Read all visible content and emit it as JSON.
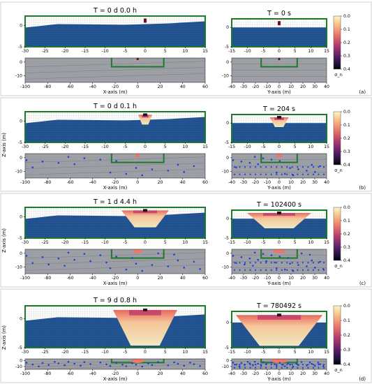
{
  "figure": {
    "axis_label_x": "X-axis (m)",
    "axis_label_y": "Y-axis (m)",
    "axis_label_z": "Z-axis (m)",
    "colorbar_label": "σ_n",
    "colorbar_ticks": [
      "0.0",
      "0.1",
      "0.2",
      "0.3",
      "0.4"
    ],
    "zoom_x_ticks": [
      "-30",
      "-25",
      "-20",
      "-15",
      "-10",
      "-5",
      "0",
      "5",
      "10",
      "15"
    ],
    "zoom_y_ticks": [
      "-15",
      "-10",
      "-5",
      "0",
      "5",
      "10",
      "15"
    ],
    "full_x_ticks": [
      "-100",
      "-80",
      "-60",
      "-40",
      "-20",
      "0",
      "20",
      "40",
      "60"
    ],
    "full_y_ticks": [
      "-40",
      "-30",
      "-20",
      "-10",
      "0",
      "10",
      "20",
      "30",
      "40"
    ]
  },
  "panels": [
    {
      "label": "(a)",
      "title_left": "T = 0 d  0.0 h",
      "title_right": "T = 0 s",
      "zoom_z_ticks": [
        "0",
        "-5"
      ],
      "full_z_ticks": [
        "0",
        "-10"
      ],
      "plume": 0,
      "dots": 0
    },
    {
      "label": "(b)",
      "title_left": "T = 0 d  0.1 h",
      "title_right": "T = 204 s",
      "zoom_z_ticks": [
        "0",
        "-5"
      ],
      "full_z_ticks": [
        "0",
        "-10"
      ],
      "plume": 1,
      "dots": 1
    },
    {
      "label": "(c)",
      "title_left": "T = 1 d  4.4 h",
      "title_right": "T = 102400 s",
      "zoom_z_ticks": [
        "0",
        "-5"
      ],
      "full_z_ticks": [
        "0",
        "-10"
      ],
      "plume": 2,
      "dots": 2
    },
    {
      "label": "(d)",
      "title_left": "T = 9 d  0.8 h",
      "title_right": "T = 780492 s",
      "zoom_z_ticks": [
        "0",
        "-5"
      ],
      "full_z_ticks": [
        "0",
        "-10"
      ],
      "plume": 3,
      "dots": 3
    }
  ],
  "chart_data": {
    "type": "heatmap",
    "colorbar": {
      "label": "σ_n",
      "range": [
        0.0,
        0.4
      ],
      "ticks": [
        0.0,
        0.1,
        0.2,
        0.3,
        0.4
      ]
    },
    "zoomed_x_range": [
      -30,
      15
    ],
    "zoomed_y_range": [
      -15,
      15
    ],
    "full_x_range": [
      -100,
      60
    ],
    "full_y_range": [
      -40,
      40
    ],
    "z_range_zoom": [
      -5,
      2
    ],
    "z_range_full": [
      -15,
      3
    ],
    "times": [
      {
        "label": "T = 0 d  0.0 h",
        "seconds": 0
      },
      {
        "label": "T = 0 d  0.1 h",
        "seconds": 204
      },
      {
        "label": "T = 1 d  4.4 h",
        "seconds": 102400
      },
      {
        "label": "T = 9 d  0.8 h",
        "seconds": 780492
      }
    ]
  }
}
